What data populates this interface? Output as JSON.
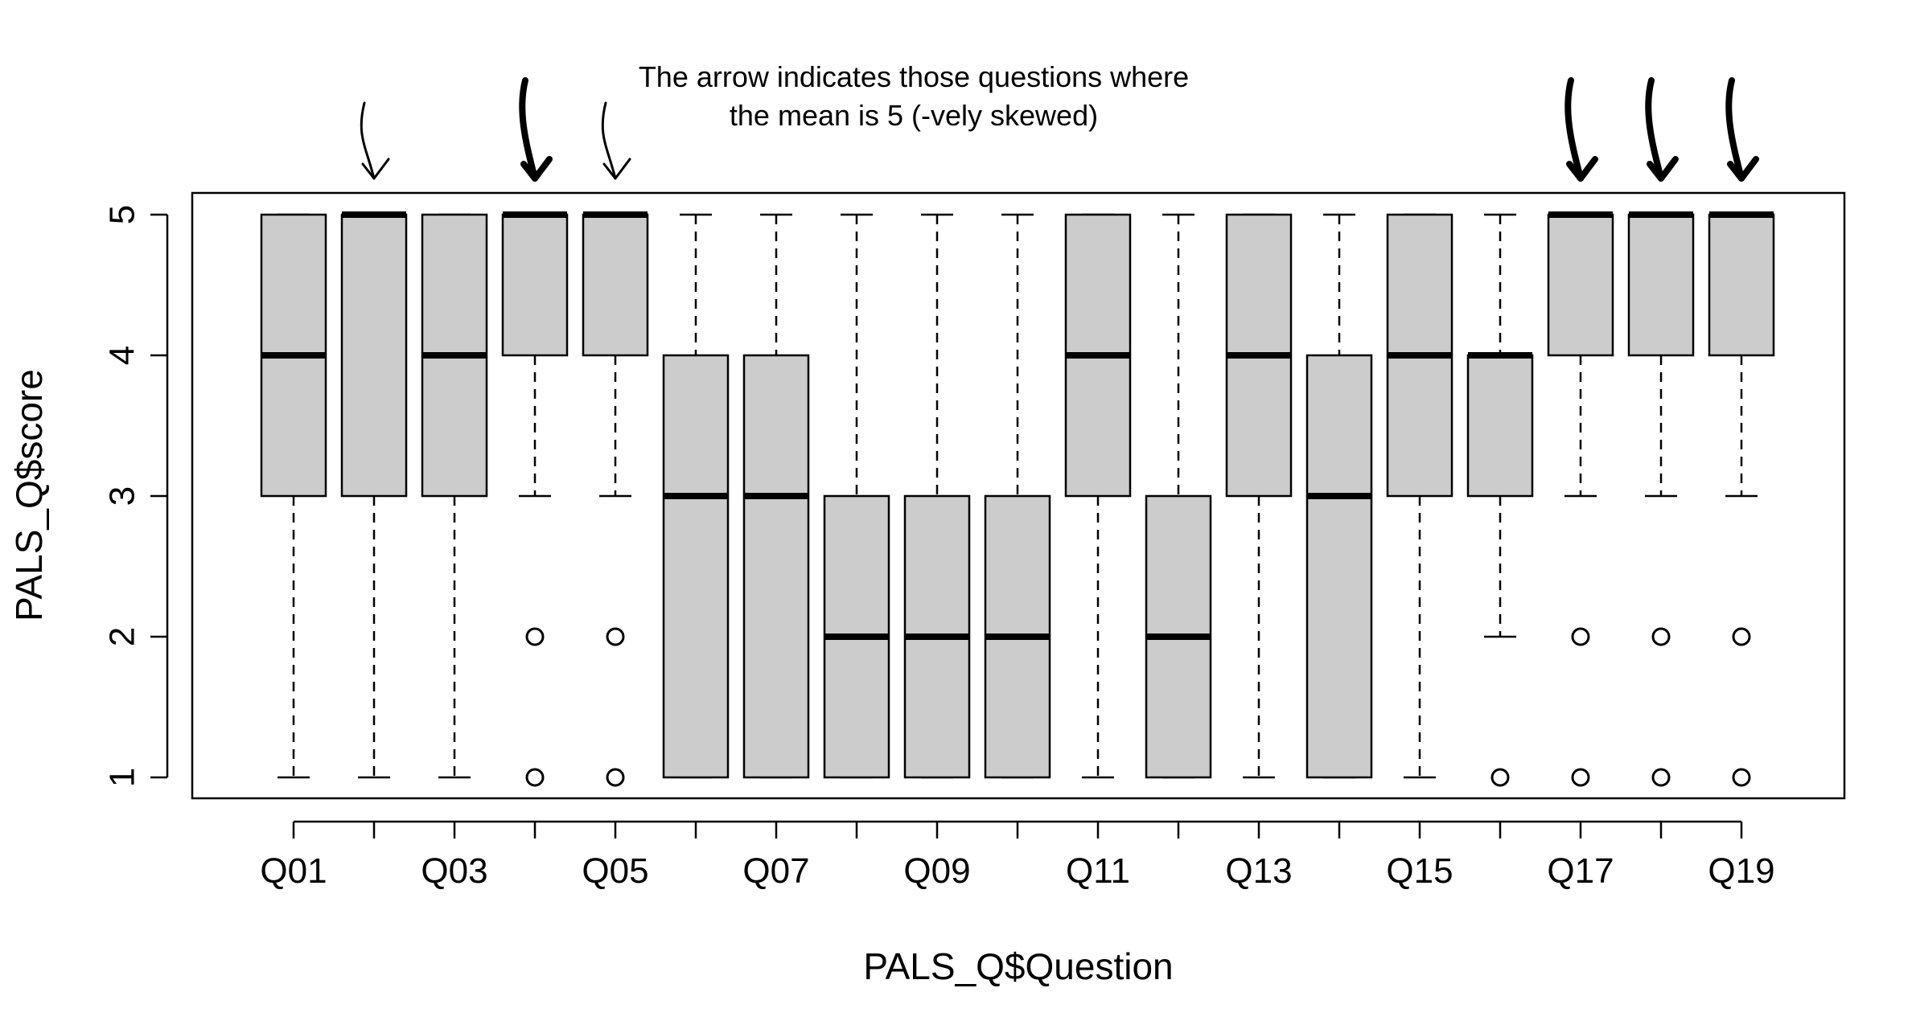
{
  "chart_data": {
    "type": "boxplot",
    "xlabel": "PALS_Q$Question",
    "ylabel": "PALS_Q$score",
    "ylim": [
      1,
      5
    ],
    "yticks": [
      1,
      2,
      3,
      4,
      5
    ],
    "x_tick_labels_shown": [
      "Q01",
      "Q03",
      "Q05",
      "Q07",
      "Q09",
      "Q11",
      "Q13",
      "Q15",
      "Q17",
      "Q19"
    ],
    "grid": false,
    "legend": "none",
    "colors": {
      "box_fill": "#cccccc",
      "stroke": "#000000"
    },
    "annotation": {
      "lines": [
        "The arrow indicates those questions where",
        "the mean is 5 (-vely skewed)"
      ],
      "arrow_questions": [
        "Q02",
        "Q04",
        "Q05",
        "Q17",
        "Q18",
        "Q19"
      ]
    },
    "boxes": [
      {
        "question": "Q01",
        "whisker_low": 1,
        "q1": 3,
        "median": 4,
        "q3": 5,
        "whisker_high": 5,
        "outliers": []
      },
      {
        "question": "Q02",
        "whisker_low": 1,
        "q1": 3,
        "median": 5,
        "q3": 5,
        "whisker_high": 5,
        "outliers": []
      },
      {
        "question": "Q03",
        "whisker_low": 1,
        "q1": 3,
        "median": 4,
        "q3": 5,
        "whisker_high": 5,
        "outliers": []
      },
      {
        "question": "Q04",
        "whisker_low": 3,
        "q1": 4,
        "median": 5,
        "q3": 5,
        "whisker_high": 5,
        "outliers": [
          2,
          1
        ]
      },
      {
        "question": "Q05",
        "whisker_low": 3,
        "q1": 4,
        "median": 5,
        "q3": 5,
        "whisker_high": 5,
        "outliers": [
          2,
          1
        ]
      },
      {
        "question": "Q06",
        "whisker_low": 1,
        "q1": 1,
        "median": 3,
        "q3": 4,
        "whisker_high": 5,
        "outliers": []
      },
      {
        "question": "Q07",
        "whisker_low": 1,
        "q1": 1,
        "median": 3,
        "q3": 4,
        "whisker_high": 5,
        "outliers": []
      },
      {
        "question": "Q08",
        "whisker_low": 1,
        "q1": 1,
        "median": 2,
        "q3": 3,
        "whisker_high": 5,
        "outliers": []
      },
      {
        "question": "Q09",
        "whisker_low": 1,
        "q1": 1,
        "median": 2,
        "q3": 3,
        "whisker_high": 5,
        "outliers": []
      },
      {
        "question": "Q10",
        "whisker_low": 1,
        "q1": 1,
        "median": 2,
        "q3": 3,
        "whisker_high": 5,
        "outliers": []
      },
      {
        "question": "Q11",
        "whisker_low": 1,
        "q1": 3,
        "median": 4,
        "q3": 5,
        "whisker_high": 5,
        "outliers": []
      },
      {
        "question": "Q12",
        "whisker_low": 1,
        "q1": 1,
        "median": 2,
        "q3": 3,
        "whisker_high": 5,
        "outliers": []
      },
      {
        "question": "Q13",
        "whisker_low": 1,
        "q1": 3,
        "median": 4,
        "q3": 5,
        "whisker_high": 5,
        "outliers": []
      },
      {
        "question": "Q14",
        "whisker_low": 1,
        "q1": 1,
        "median": 3,
        "q3": 4,
        "whisker_high": 5,
        "outliers": []
      },
      {
        "question": "Q15",
        "whisker_low": 1,
        "q1": 3,
        "median": 4,
        "q3": 5,
        "whisker_high": 5,
        "outliers": []
      },
      {
        "question": "Q16",
        "whisker_low": 2,
        "q1": 3,
        "median": 4,
        "q3": 4,
        "whisker_high": 5,
        "outliers": [
          1
        ]
      },
      {
        "question": "Q17",
        "whisker_low": 3,
        "q1": 4,
        "median": 5,
        "q3": 5,
        "whisker_high": 5,
        "outliers": [
          2,
          1
        ]
      },
      {
        "question": "Q18",
        "whisker_low": 3,
        "q1": 4,
        "median": 5,
        "q3": 5,
        "whisker_high": 5,
        "outliers": [
          2,
          1
        ]
      },
      {
        "question": "Q19",
        "whisker_low": 3,
        "q1": 4,
        "median": 5,
        "q3": 5,
        "whisker_high": 5,
        "outliers": [
          2,
          1
        ]
      }
    ]
  }
}
